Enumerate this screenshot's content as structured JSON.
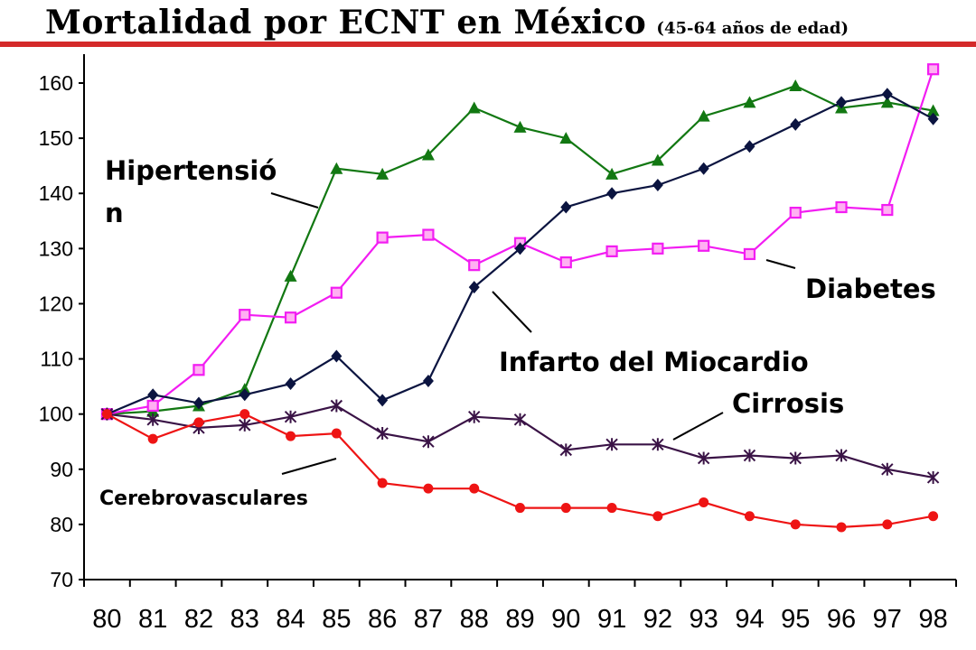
{
  "slide": {
    "title": "Mortalidad por ECNT en México",
    "subtitle": "(45-64 años de edad)"
  },
  "colors": {
    "title_rule": "#d42a2a",
    "hipertension": "#127812",
    "diabetes": "#f21df2",
    "infarto": "#0b1440",
    "cirrosis": "#3a1346",
    "cerebrovasculares": "#ee1414"
  },
  "chart_data": {
    "type": "line",
    "x": [
      "80",
      "81",
      "82",
      "83",
      "84",
      "85",
      "86",
      "87",
      "88",
      "89",
      "90",
      "91",
      "92",
      "93",
      "94",
      "95",
      "96",
      "97",
      "98"
    ],
    "ylim": [
      70,
      160
    ],
    "yticks": [
      70,
      80,
      90,
      100,
      110,
      120,
      130,
      140,
      150,
      160
    ],
    "grid": false,
    "legend": "none",
    "series": [
      {
        "key": "hipertension",
        "marker": "triangle",
        "values": [
          100,
          100.5,
          101.5,
          104.5,
          125,
          144.5,
          143.5,
          147,
          155.5,
          152,
          150,
          143.5,
          146,
          154,
          156.5,
          159.5,
          155.5,
          156.5,
          155
        ]
      },
      {
        "key": "diabetes",
        "marker": "square",
        "values": [
          100,
          101.5,
          108,
          118,
          117.5,
          122,
          132,
          132.5,
          127,
          131,
          127.5,
          129.5,
          130,
          130.5,
          129,
          136.5,
          137.5,
          137,
          162.5
        ]
      },
      {
        "key": "infarto",
        "marker": "diamond",
        "values": [
          100,
          103.5,
          102,
          103.5,
          105.5,
          110.5,
          102.5,
          106,
          123,
          130,
          137.5,
          140,
          141.5,
          144.5,
          148.5,
          152.5,
          156.5,
          158,
          153.5
        ]
      },
      {
        "key": "cirrosis",
        "marker": "star",
        "values": [
          100,
          99,
          97.5,
          98,
          99.5,
          101.5,
          96.5,
          95,
          99.5,
          99,
          93.5,
          94.5,
          94.5,
          92,
          92.5,
          92,
          92.5,
          90,
          88.5
        ]
      },
      {
        "key": "cerebrovasculares",
        "marker": "circle",
        "values": [
          100,
          95.5,
          98.5,
          100,
          96,
          96.5,
          87.5,
          86.5,
          86.5,
          83,
          83,
          83,
          81.5,
          84,
          81.5,
          80,
          79.5,
          80,
          81.5
        ]
      }
    ],
    "annotations": {
      "hipertension_line1": "Hipertensió",
      "hipertension_line2": "n",
      "diabetes": "Diabetes",
      "infarto": "Infarto del Miocardio",
      "cirrosis": "Cirrosis",
      "cerebrovasculares": "Cerebrovasculares"
    }
  }
}
